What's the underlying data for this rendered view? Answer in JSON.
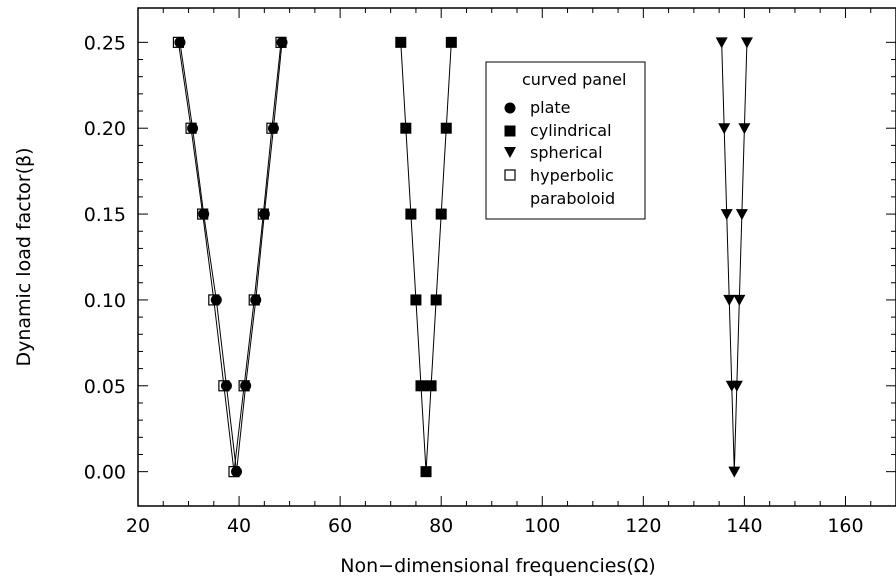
{
  "chart_data": {
    "type": "scatter",
    "xlabel": "Non−dimensional frequencies(Ω)",
    "ylabel": "Dynamic load factor(β)",
    "xlim": [
      20,
      170
    ],
    "ylim": [
      -0.02,
      0.27
    ],
    "x_ticks": [
      20,
      40,
      60,
      80,
      100,
      120,
      140,
      160
    ],
    "y_ticks": [
      0.0,
      0.05,
      0.1,
      0.15,
      0.2,
      0.25
    ],
    "x_tick_labels": [
      "20",
      "40",
      "60",
      "80",
      "100",
      "120",
      "140",
      "160"
    ],
    "y_tick_labels": [
      "0.00",
      "0.05",
      "0.10",
      "0.15",
      "0.20",
      "0.25"
    ],
    "grid": false,
    "legend": {
      "title": "curved panel",
      "position": "top-center",
      "entries": [
        "plate",
        "cylindrical",
        "spherical",
        "hyperbolic",
        "paraboloid"
      ]
    },
    "y_levels": [
      0.0,
      0.05,
      0.1,
      0.15,
      0.2,
      0.25
    ],
    "series": [
      {
        "name": "plate",
        "marker": "filled-circle",
        "left_x": [
          39.5,
          37.5,
          35.5,
          33.0,
          30.8,
          28.3
        ],
        "right_x": [
          39.5,
          41.3,
          43.3,
          45.0,
          46.8,
          48.5
        ]
      },
      {
        "name": "cylindrical",
        "marker": "filled-square",
        "left_x": [
          77.0,
          76.0,
          75.0,
          74.0,
          73.0,
          72.0
        ],
        "right_x": [
          77.0,
          78.0,
          79.0,
          80.0,
          81.0,
          82.0
        ]
      },
      {
        "name": "spherical",
        "marker": "filled-triangle-down",
        "left_x": [
          138.0,
          137.5,
          137.0,
          136.5,
          136.0,
          135.5
        ],
        "right_x": [
          138.0,
          138.5,
          139.0,
          139.5,
          140.0,
          140.5
        ]
      },
      {
        "name": "hyperbolic paraboloid",
        "marker": "open-square",
        "left_x": [
          39.0,
          37.0,
          35.0,
          32.8,
          30.5,
          28.0
        ],
        "right_x": [
          39.0,
          41.0,
          43.0,
          44.8,
          46.5,
          48.3
        ]
      }
    ]
  }
}
